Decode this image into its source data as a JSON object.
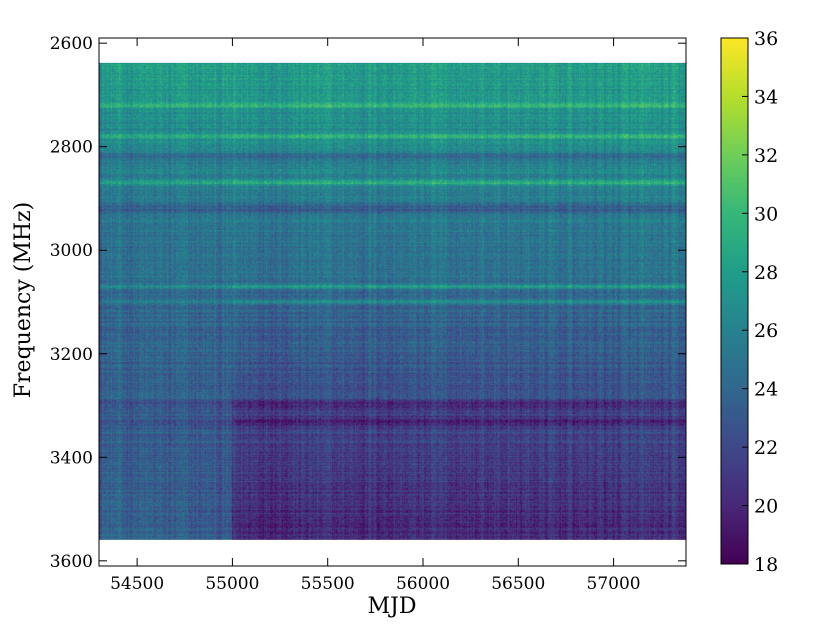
{
  "chart_data": {
    "type": "heatmap",
    "title": "",
    "xlabel": "MJD",
    "ylabel": "Frequency (MHz)",
    "xlim": [
      54300,
      57380
    ],
    "ylim": [
      3610,
      2590
    ],
    "y_inverted": true,
    "data_extent": {
      "x": [
        54300,
        57380
      ],
      "y": [
        2638,
        3560
      ]
    },
    "xticks": [
      54500,
      55000,
      55500,
      56000,
      56500,
      57000
    ],
    "yticks": [
      2600,
      2800,
      3000,
      3200,
      3400,
      3600
    ],
    "xtick_labels": [
      "54500",
      "55000",
      "55500",
      "56000",
      "56500",
      "57000"
    ],
    "ytick_labels": [
      "2600",
      "2800",
      "3000",
      "3200",
      "3400",
      "3600"
    ],
    "colorbar": {
      "colormap": "viridis",
      "vmin": 18,
      "vmax": 36,
      "ticks": [
        18,
        20,
        22,
        24,
        26,
        28,
        30,
        32,
        34,
        36
      ],
      "tick_labels": [
        "18",
        "20",
        "22",
        "24",
        "26",
        "28",
        "30",
        "32",
        "34",
        "36"
      ]
    },
    "value_trend": {
      "low_frequency_mean": 28,
      "high_frequency_mean": 20,
      "early_mjd_high_frequency_mean": 24,
      "bright_bands_mhz": [
        2720,
        2780,
        2870,
        3070,
        3100
      ],
      "dark_bands_mhz": [
        2820,
        2920,
        3300,
        3330
      ]
    },
    "grid": false,
    "legend": "none"
  },
  "colors": {
    "viridis_stops": [
      "#440154",
      "#482878",
      "#3e4989",
      "#31688e",
      "#26828e",
      "#1f9e89",
      "#35b779",
      "#6ece58",
      "#b5de2b",
      "#fde725"
    ],
    "background": "#ffffff",
    "axis": "#000000"
  }
}
